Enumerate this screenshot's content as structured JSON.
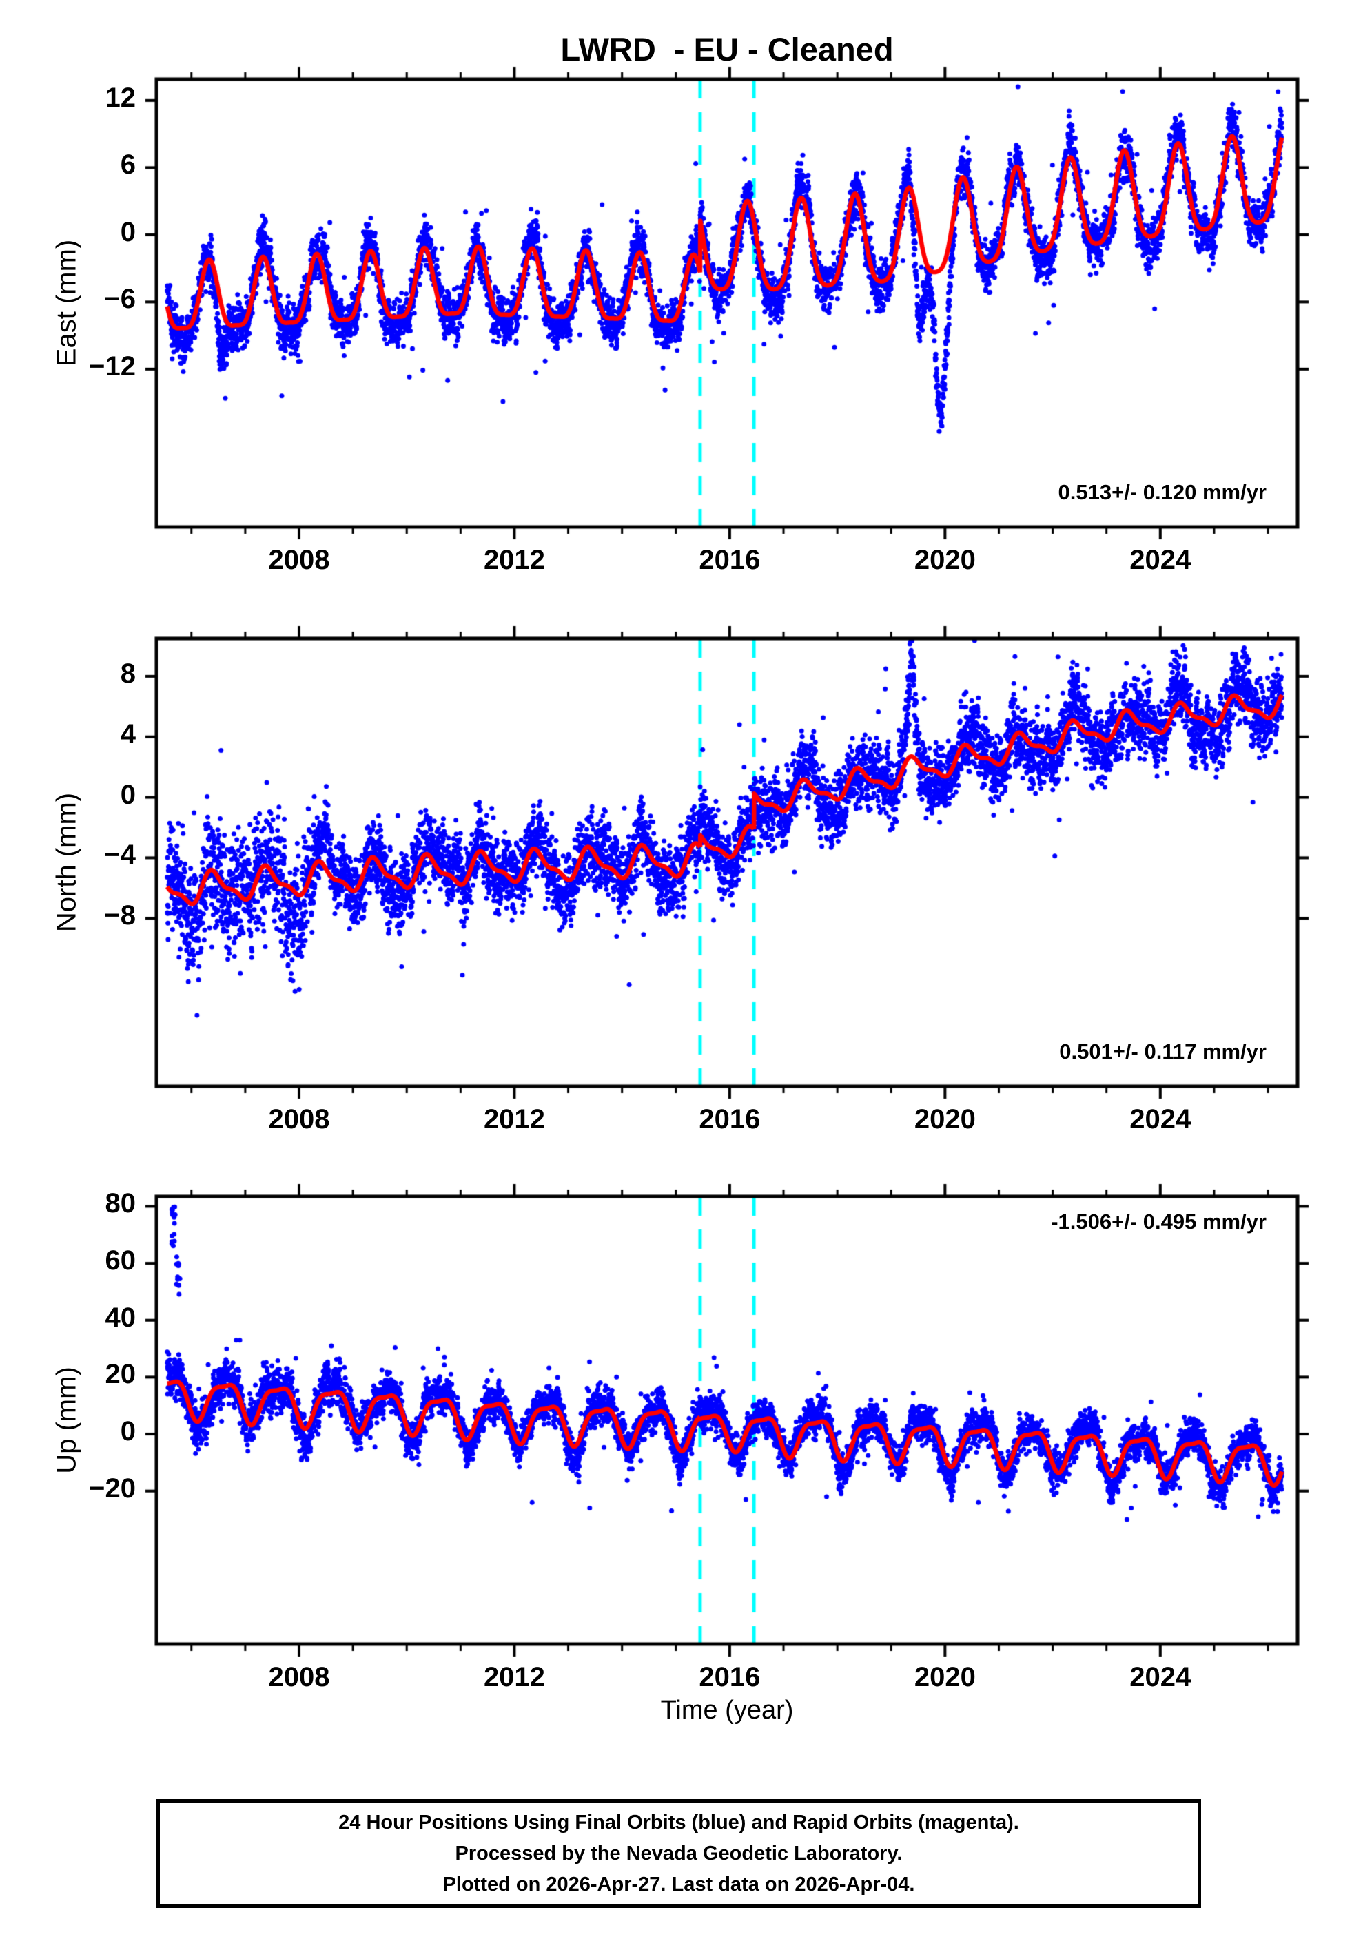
{
  "header": {
    "title": "LWRD  - EU - Cleaned"
  },
  "axis": {
    "xlabel": "Time (year)",
    "xlim": [
      2005.35,
      2026.55
    ],
    "x_major_ticks": [
      {
        "year": 2008,
        "label": "2008"
      },
      {
        "year": 2012,
        "label": "2012"
      },
      {
        "year": 2016,
        "label": "2016"
      },
      {
        "year": 2020,
        "label": "2020"
      },
      {
        "year": 2024,
        "label": "2024"
      }
    ],
    "x_minor_step": 1
  },
  "vertical_lines": {
    "color": "#00ffff",
    "style": "dashed",
    "years": [
      2015.45,
      2016.45
    ]
  },
  "colors": {
    "points": "#0000ff",
    "model": "#ff0000",
    "axes": "#000000",
    "background": "#ffffff"
  },
  "caption": {
    "line1": "24 Hour Positions Using Final Orbits (blue) and Rapid Orbits (magenta).",
    "line2": "Processed by the Nevada Geodetic Laboratory.",
    "line3": "Plotted on 2026-Apr-27. Last data on 2026-Apr-04."
  },
  "chart_data": [
    {
      "name": "east",
      "type": "scatter",
      "ylabel": "East (mm)",
      "ylim": [
        -26.1,
        13.9
      ],
      "yticks": [
        {
          "v": 12,
          "label": "12"
        },
        {
          "v": 6,
          "label": "6"
        },
        {
          "v": 0,
          "label": "0"
        },
        {
          "v": -6,
          "label": "−6"
        },
        {
          "v": -12,
          "label": "−12"
        }
      ],
      "rate_label": "0.513+/- 0.120 mm/yr",
      "rate_pos": "bottom-right",
      "tstart": 2005.55,
      "tend": 2026.26,
      "seed": 11,
      "model": {
        "annual_peak": 0.33,
        "semi_peak": 0.33,
        "segments": [
          {
            "t": [
              2005.55,
              2015.45
            ],
            "a1": 3.0,
            "a2": 0.8,
            "mean": [
              [
                2005.55,
                -6.2
              ],
              [
                2008,
                -5.6
              ],
              [
                2011,
                -4.8
              ],
              [
                2014,
                -5.3
              ],
              [
                2015.45,
                -5.6
              ]
            ]
          },
          {
            "t": [
              2015.45,
              2016.45
            ],
            "a1": 4.0,
            "a2": 0.8,
            "mean": [
              [
                2015.45,
                -1.6
              ],
              [
                2016.45,
                -1.8
              ]
            ]
          },
          {
            "t": [
              2016.45,
              2026.28
            ],
            "a1": 4.0,
            "a2": 0.8,
            "mean": [
              [
                2016.45,
                -1.8
              ],
              [
                2019,
                -0.9
              ],
              [
                2022,
                1.9
              ],
              [
                2026.28,
                4.6
              ]
            ]
          }
        ]
      },
      "noise": {
        "smooth": 0.85,
        "white": 1.5,
        "tail": 1.6,
        "tail_p": 0.012,
        "extra_seasonal": 0.5,
        "early_mult": 1.0,
        "early_until": 2005
      },
      "anomalies": [
        {
          "c": 2019.52,
          "s": 0.07,
          "a": -8.5
        },
        {
          "c": 2019.93,
          "s": 0.1,
          "a": -12.0
        },
        {
          "c": 2006.55,
          "s": 0.08,
          "a": -3.5
        },
        {
          "c": 2008.5,
          "s": 0.05,
          "a": 2.2
        }
      ],
      "clusters": [],
      "outliers": [
        [
          2006.63,
          -14.6
        ],
        [
          2010.05,
          -12.7
        ],
        [
          2013.63,
          2.7
        ],
        [
          2014.76,
          -11.9
        ],
        [
          2021.68,
          -8.8
        ],
        [
          2010.3,
          -12.1
        ],
        [
          2012.4,
          -12.3
        ],
        [
          2009.33,
          1.5
        ],
        [
          2016.85,
          -5.2
        ],
        [
          2025.9,
          -1.5
        ]
      ]
    },
    {
      "name": "north",
      "type": "scatter",
      "ylabel": "North (mm)",
      "ylim": [
        -19.1,
        10.5
      ],
      "yticks": [
        {
          "v": 8,
          "label": "8"
        },
        {
          "v": 4,
          "label": "4"
        },
        {
          "v": 0,
          "label": "0"
        },
        {
          "v": -4,
          "label": "−4"
        },
        {
          "v": -8,
          "label": "−8"
        }
      ],
      "rate_label": "0.501+/- 0.117 mm/yr",
      "rate_pos": "bottom-right",
      "tstart": 2005.55,
      "tend": 2026.26,
      "seed": 22,
      "model": {
        "annual_peak": 0.42,
        "semi_peak": 0.33,
        "segments": [
          {
            "t": [
              2005.55,
              2015.45
            ],
            "a1": 0.9,
            "a2": 0.35,
            "mean": [
              [
                2005.55,
                -6.2
              ],
              [
                2009,
                -5.2
              ],
              [
                2012,
                -4.6
              ],
              [
                2015.45,
                -4.2
              ]
            ]
          },
          {
            "t": [
              2015.45,
              2016.45
            ],
            "a1": 0.8,
            "a2": 0.3,
            "mean": [
              [
                2015.45,
                -3.3
              ],
              [
                2016.45,
                -2.9
              ]
            ]
          },
          {
            "t": [
              2016.45,
              2026.28
            ],
            "a1": 0.75,
            "a2": 0.3,
            "mean": [
              [
                2016.45,
                -0.5
              ],
              [
                2020,
                2.2
              ],
              [
                2023,
                4.6
              ],
              [
                2026.28,
                6.2
              ]
            ]
          }
        ]
      },
      "noise": {
        "smooth": 0.95,
        "white": 1.6,
        "tail": 1.5,
        "tail_p": 0.012,
        "extra_seasonal": 0.45,
        "early_mult": 1.6,
        "early_until": 2008.3
      },
      "anomalies": [
        {
          "c": 2008.5,
          "s": 0.05,
          "a": 3.0
        },
        {
          "c": 2010.95,
          "s": 0.06,
          "a": 2.8
        },
        {
          "c": 2019.38,
          "s": 0.06,
          "a": 5.0
        }
      ],
      "clusters": [],
      "outliers": [
        [
          2005.88,
          -9.6
        ],
        [
          2006.12,
          -10.3
        ],
        [
          2006.38,
          -9.9
        ],
        [
          2007.12,
          -10.6
        ],
        [
          2008.06,
          -9.8
        ],
        [
          2006.7,
          -9.3
        ],
        [
          2018.9,
          8.5
        ],
        [
          2021.3,
          9.3
        ],
        [
          2006.55,
          3.1
        ],
        [
          2013.9,
          -9.2
        ]
      ]
    },
    {
      "name": "up",
      "type": "scatter",
      "ylabel": "Up (mm)",
      "ylim": [
        -73.8,
        83.5
      ],
      "yticks": [
        {
          "v": 80,
          "label": "80"
        },
        {
          "v": 60,
          "label": "60"
        },
        {
          "v": 40,
          "label": "40"
        },
        {
          "v": 20,
          "label": "20"
        },
        {
          "v": 0,
          "label": "0"
        },
        {
          "v": -20,
          "label": "−20"
        }
      ],
      "rate_label": "-1.506+/- 0.495 mm/yr",
      "rate_pos": "top-right",
      "tstart": 2005.55,
      "tend": 2026.26,
      "seed": 33,
      "model": {
        "annual_peak": 0.62,
        "semi_peak": 0.35,
        "segments": [
          {
            "t": [
              2005.55,
              2015.45
            ],
            "a1": 6.5,
            "a2": 2.0,
            "mean": [
              [
                2005.55,
                13.5
              ],
              [
                2008,
                10.5
              ],
              [
                2010,
                8.0
              ],
              [
                2012,
                5.0
              ],
              [
                2015.45,
                2.2
              ]
            ]
          },
          {
            "t": [
              2015.45,
              2016.45
            ],
            "a1": 6.0,
            "a2": 1.8,
            "mean": [
              [
                2015.45,
                1.8
              ],
              [
                2016.45,
                1.2
              ]
            ]
          },
          {
            "t": [
              2016.45,
              2026.28
            ],
            "a1": 6.5,
            "a2": 2.0,
            "mean": [
              [
                2016.45,
                0.6
              ],
              [
                2019,
                -2.0
              ],
              [
                2022,
                -5.0
              ],
              [
                2026.28,
                -9.8
              ]
            ]
          }
        ]
      },
      "noise": {
        "smooth": 2.6,
        "white": 4.5,
        "tail": 4.0,
        "tail_p": 0.012,
        "extra_seasonal": 1.6,
        "early_mult": 1.25,
        "early_until": 2009
      },
      "anomalies": [
        {
          "c": 2019.4,
          "s": 0.05,
          "a": 8.0
        }
      ],
      "clusters": [
        {
          "t": [
            2005.63,
            2005.7
          ],
          "v": [
            62,
            80
          ],
          "n": 15
        },
        {
          "t": [
            2005.72,
            2005.79
          ],
          "v": [
            48,
            67
          ],
          "n": 12
        }
      ],
      "outliers": [
        [
          2012.33,
          -24
        ],
        [
          2014.92,
          -27
        ],
        [
          2016.3,
          -23
        ],
        [
          2020.62,
          -24
        ],
        [
          2023.38,
          -30
        ],
        [
          2023.46,
          -26
        ],
        [
          2025.82,
          -29
        ],
        [
          2025.9,
          -23
        ],
        [
          2008.6,
          31
        ],
        [
          2010.58,
          30
        ],
        [
          2006.9,
          33
        ],
        [
          2024.9,
          -22
        ],
        [
          2013.4,
          -26
        ],
        [
          2017.8,
          -22
        ]
      ]
    }
  ]
}
